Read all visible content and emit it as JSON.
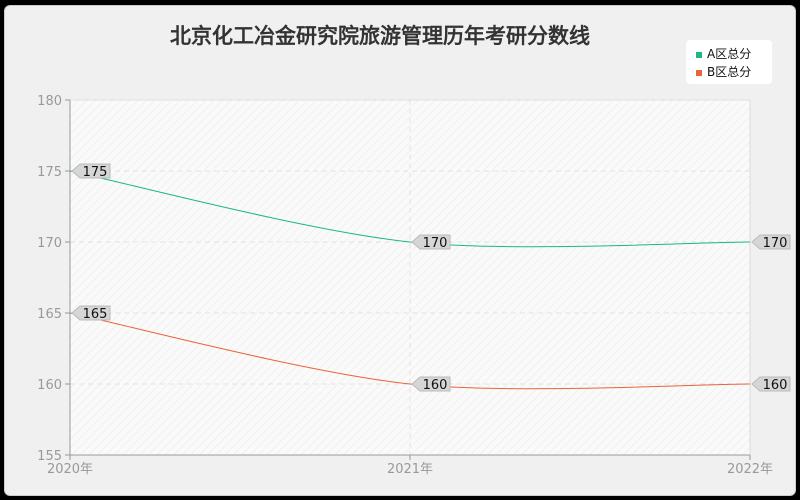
{
  "chart_data": {
    "type": "line",
    "title": "北京化工冶金研究院旅游管理历年考研分数线",
    "categories": [
      "2020年",
      "2021年",
      "2022年"
    ],
    "series": [
      {
        "name": "A区总分",
        "values": [
          175,
          170,
          170
        ],
        "color": "#1db87f"
      },
      {
        "name": "B区总分",
        "values": [
          165,
          160,
          160
        ],
        "color": "#e8643c"
      }
    ],
    "ylim": [
      155,
      180
    ],
    "yticks": [
      "155",
      "160",
      "165",
      "170",
      "175",
      "180"
    ],
    "grid": true,
    "legend": "top-right",
    "xlabel": "",
    "ylabel": ""
  }
}
